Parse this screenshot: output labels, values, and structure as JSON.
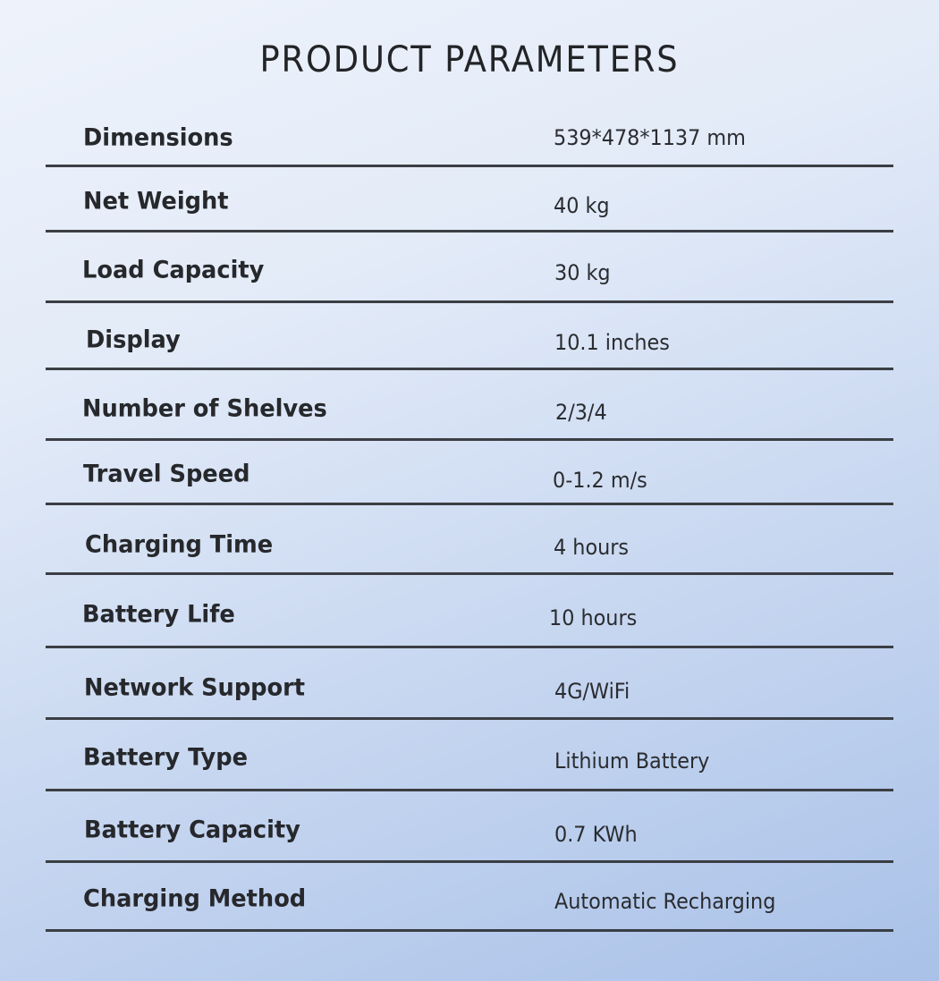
{
  "title": "PRODUCT PARAMETERS",
  "rows": [
    {
      "label": "Dimensions",
      "value": "539*478*1137 mm"
    },
    {
      "label": "Net Weight",
      "value": "40 kg"
    },
    {
      "label": "Load Capacity",
      "value": "30 kg"
    },
    {
      "label": "Display",
      "value": "10.1 inches"
    },
    {
      "label": "Number of Shelves",
      "value": "2/3/4"
    },
    {
      "label": "Travel Speed",
      "value": "0-1.2 m/s"
    },
    {
      "label": "Charging Time",
      "value": "4 hours"
    },
    {
      "label": "Battery Life",
      "value": "10 hours"
    },
    {
      "label": "Network Support",
      "value": "4G/WiFi"
    },
    {
      "label": "Battery Type",
      "value": "Lithium Battery"
    },
    {
      "label": "Battery Capacity",
      "value": "0.7 KWh"
    },
    {
      "label": "Charging Method",
      "value": "Automatic Recharging"
    }
  ]
}
